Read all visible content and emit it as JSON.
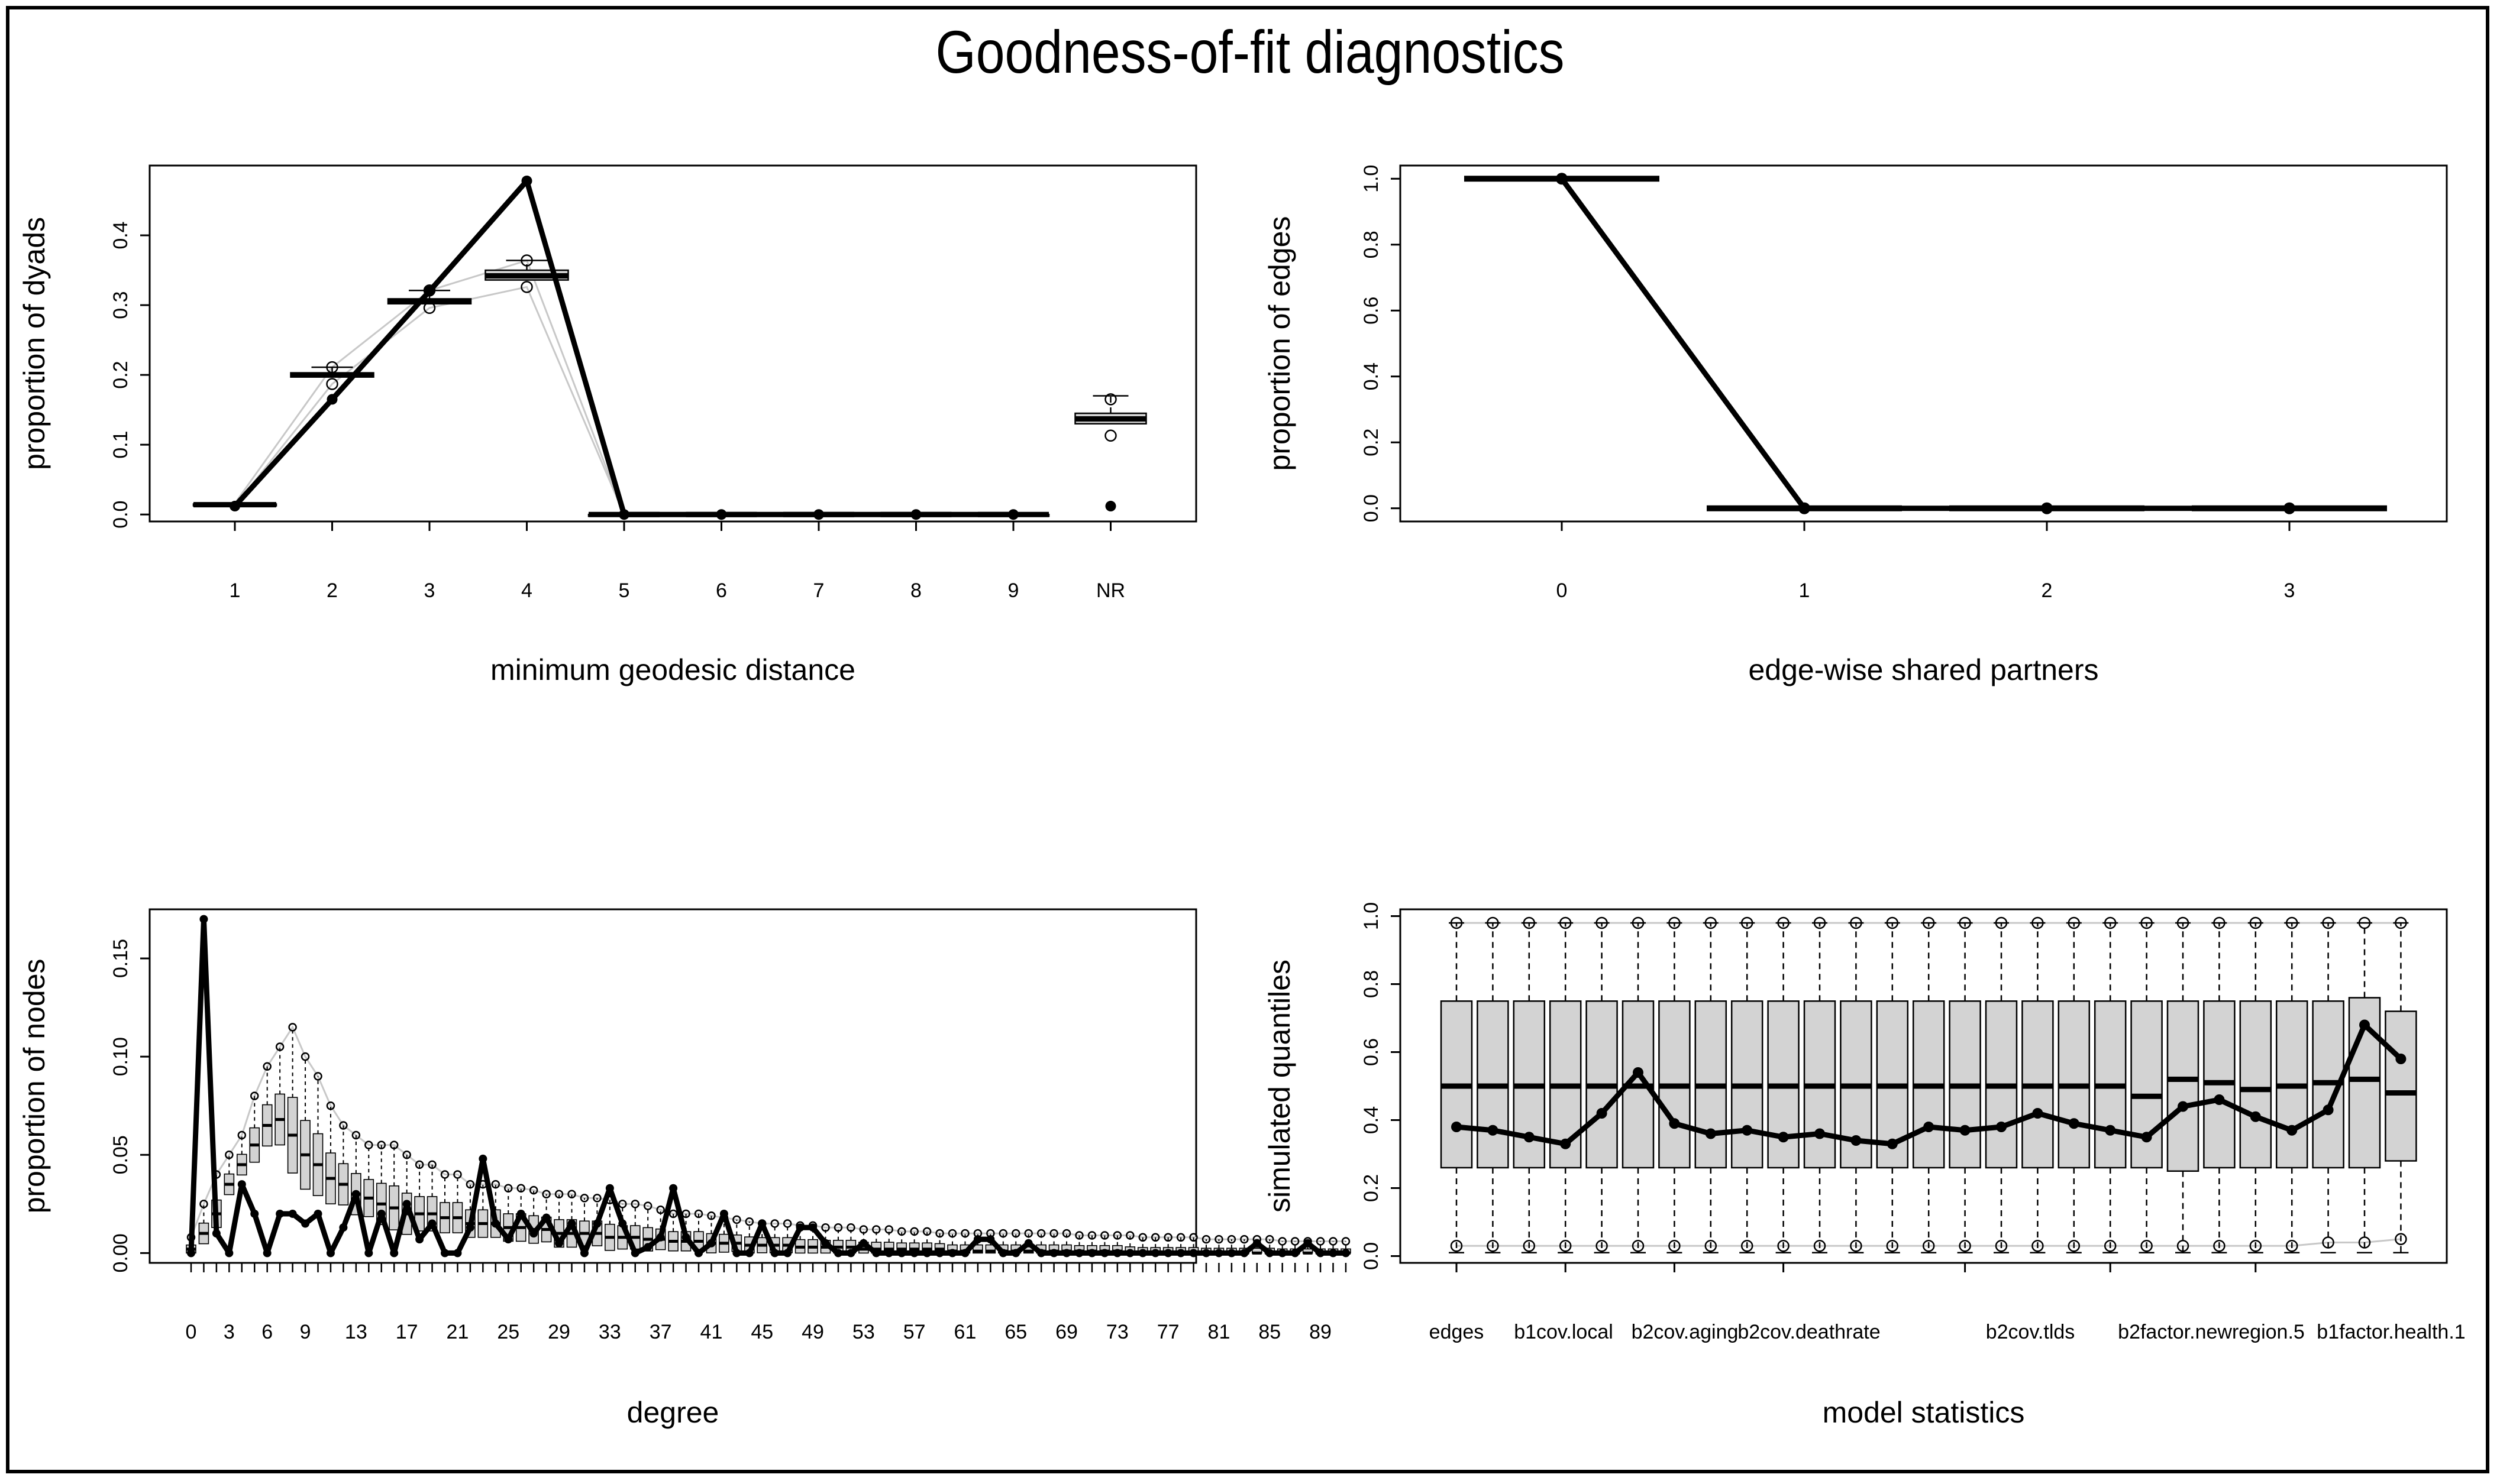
{
  "title": "Goodness-of-fit diagnostics",
  "colors": {
    "observed": "#000000",
    "sim_band": "#c8c8c8",
    "box_fill": "#d3d3d3"
  },
  "chart_data": [
    {
      "id": "geodesic",
      "type": "boxplot-line",
      "xlabel": "minimum geodesic distance",
      "ylabel": "proportion of dyads",
      "categories": [
        "1",
        "2",
        "3",
        "4",
        "5",
        "6",
        "7",
        "8",
        "9",
        "NR"
      ],
      "yticks": [
        0.0,
        0.1,
        0.2,
        0.3,
        0.4
      ],
      "yticklabels": [
        "0.0",
        "0.1",
        "0.2",
        "0.3",
        "0.4"
      ],
      "ylim": [
        -0.01,
        0.5
      ],
      "observed": [
        0.012,
        0.165,
        0.32,
        0.478,
        0.0,
        0.0,
        0.0,
        0.0,
        0.0,
        0.012
      ],
      "sim_median": [
        0.014,
        0.2,
        0.305,
        0.342,
        0.0,
        0.0,
        0.0,
        0.0,
        0.0,
        0.137
      ],
      "sim_q1": [
        0.013,
        0.197,
        0.302,
        0.336,
        0.0,
        0.0,
        0.0,
        0.0,
        0.0,
        0.13
      ],
      "sim_q3": [
        0.015,
        0.203,
        0.309,
        0.35,
        0.0,
        0.0,
        0.0,
        0.0,
        0.0,
        0.145
      ],
      "sim_min": [
        0.012,
        0.187,
        0.296,
        0.326,
        0.0,
        0.0,
        0.0,
        0.0,
        0.0,
        0.105
      ],
      "sim_max": [
        0.016,
        0.211,
        0.321,
        0.364,
        0.0,
        0.0,
        0.0,
        0.0,
        0.0,
        0.17
      ]
    },
    {
      "id": "esp",
      "type": "boxplot-line",
      "xlabel": "edge-wise shared partners",
      "ylabel": "proportion of edges",
      "categories": [
        "0",
        "1",
        "2",
        "3"
      ],
      "yticks": [
        0.0,
        0.2,
        0.4,
        0.6,
        0.8,
        1.0
      ],
      "yticklabels": [
        "0.0",
        "0.2",
        "0.4",
        "0.6",
        "0.8",
        "1.0"
      ],
      "ylim": [
        -0.04,
        1.04
      ],
      "observed": [
        1.0,
        0.0,
        0.0,
        0.0
      ],
      "sim_median": [
        1.0,
        0.0,
        0.0,
        0.0
      ]
    },
    {
      "id": "degree",
      "type": "boxplot-line",
      "xlabel": "degree",
      "ylabel": "proportion of nodes",
      "x_range": [
        0,
        91
      ],
      "xticklabels": [
        "0",
        "3",
        "6",
        "9",
        "13",
        "17",
        "21",
        "25",
        "29",
        "33",
        "37",
        "41",
        "45",
        "49",
        "53",
        "57",
        "61",
        "65",
        "69",
        "73",
        "77",
        "81",
        "85",
        "89"
      ],
      "yticks": [
        0.0,
        0.05,
        0.1,
        0.15
      ],
      "yticklabels": [
        "0.00",
        "0.05",
        "0.10",
        "0.15"
      ],
      "ylim": [
        -0.005,
        0.175
      ],
      "observed": [
        0.0,
        0.17,
        0.01,
        0.0,
        0.035,
        0.02,
        0.0,
        0.02,
        0.02,
        0.015,
        0.02,
        0.0,
        0.013,
        0.03,
        0.0,
        0.02,
        0.0,
        0.025,
        0.007,
        0.015,
        0.0,
        0.0,
        0.013,
        0.048,
        0.015,
        0.007,
        0.02,
        0.01,
        0.018,
        0.005,
        0.015,
        0.0,
        0.015,
        0.033,
        0.015,
        0.0,
        0.003,
        0.008,
        0.033,
        0.008,
        0.0,
        0.005,
        0.02,
        0.0,
        0.0,
        0.015,
        0.0,
        0.0,
        0.013,
        0.013,
        0.005,
        0.0,
        0.0,
        0.005,
        0.0,
        0.0,
        0.0,
        0.0,
        0.0,
        0.0,
        0.0,
        0.0,
        0.007,
        0.007,
        0.0,
        0.0,
        0.005,
        0.0,
        0.0,
        0.0,
        0.0,
        0.0,
        0.0,
        0.0,
        0.0,
        0.0,
        0.0,
        0.0,
        0.0,
        0.0,
        0.0,
        0.0,
        0.0,
        0.0,
        0.005,
        0.0,
        0.0,
        0.0,
        0.005,
        0.0,
        0.0,
        0.0
      ],
      "sim_median": [
        0.002,
        0.01,
        0.02,
        0.035,
        0.045,
        0.055,
        0.065,
        0.068,
        0.06,
        0.05,
        0.045,
        0.038,
        0.035,
        0.03,
        0.028,
        0.025,
        0.023,
        0.02,
        0.02,
        0.02,
        0.018,
        0.018,
        0.015,
        0.015,
        0.015,
        0.013,
        0.013,
        0.012,
        0.012,
        0.01,
        0.01,
        0.01,
        0.01,
        0.008,
        0.008,
        0.008,
        0.007,
        0.007,
        0.006,
        0.006,
        0.006,
        0.005,
        0.005,
        0.005,
        0.004,
        0.004,
        0.004,
        0.004,
        0.003,
        0.003,
        0.003,
        0.003,
        0.003,
        0.002,
        0.002,
        0.002,
        0.002,
        0.002,
        0.002,
        0.002,
        0.001,
        0.001,
        0.001,
        0.001,
        0.001,
        0.001,
        0.001,
        0.001,
        0.001,
        0.001,
        0.001,
        0.001,
        0.001,
        0.001,
        0.0,
        0.0,
        0.0,
        0.0,
        0.0,
        0.0,
        0.0,
        0.0,
        0.0,
        0.0,
        0.0,
        0.0,
        0.0,
        0.0,
        0.0,
        0.0,
        0.0,
        0.0
      ],
      "sim_max": [
        0.008,
        0.025,
        0.04,
        0.05,
        0.06,
        0.08,
        0.095,
        0.105,
        0.115,
        0.1,
        0.09,
        0.075,
        0.065,
        0.06,
        0.055,
        0.055,
        0.055,
        0.05,
        0.045,
        0.045,
        0.04,
        0.04,
        0.035,
        0.035,
        0.035,
        0.033,
        0.033,
        0.032,
        0.03,
        0.03,
        0.03,
        0.028,
        0.028,
        0.027,
        0.025,
        0.025,
        0.024,
        0.022,
        0.02,
        0.02,
        0.02,
        0.019,
        0.018,
        0.017,
        0.016,
        0.015,
        0.015,
        0.015,
        0.014,
        0.014,
        0.013,
        0.013,
        0.013,
        0.012,
        0.012,
        0.012,
        0.011,
        0.011,
        0.011,
        0.01,
        0.01,
        0.01,
        0.01,
        0.01,
        0.01,
        0.01,
        0.01,
        0.01,
        0.01,
        0.01,
        0.009,
        0.009,
        0.009,
        0.009,
        0.009,
        0.008,
        0.008,
        0.008,
        0.008,
        0.008,
        0.007,
        0.007,
        0.007,
        0.007,
        0.007,
        0.007,
        0.006,
        0.006,
        0.006,
        0.006,
        0.006,
        0.006
      ]
    },
    {
      "id": "model",
      "type": "boxplot-line",
      "xlabel": "model statistics",
      "ylabel": "simulated quantiles",
      "xticklabels": [
        "edges",
        "b1cov.local",
        "b2cov.aging",
        "b2cov.deathrate",
        "b2cov.tlds",
        "b2factor.newregion.5",
        "b1factor.health.1"
      ],
      "xtick_positions": [
        0,
        3,
        6,
        9,
        14,
        18,
        22
      ],
      "n_stats": 27,
      "yticks": [
        0.0,
        0.2,
        0.4,
        0.6,
        0.8,
        1.0
      ],
      "yticklabels": [
        "0.0",
        "0.2",
        "0.4",
        "0.6",
        "0.8",
        "1.0"
      ],
      "ylim": [
        -0.02,
        1.02
      ],
      "observed": [
        0.38,
        0.37,
        0.35,
        0.33,
        0.42,
        0.54,
        0.39,
        0.36,
        0.37,
        0.35,
        0.36,
        0.34,
        0.33,
        0.38,
        0.37,
        0.38,
        0.42,
        0.39,
        0.37,
        0.35,
        0.44,
        0.46,
        0.41,
        0.37,
        0.43,
        0.68,
        0.58
      ],
      "box_q1": [
        0.26,
        0.26,
        0.26,
        0.26,
        0.26,
        0.26,
        0.26,
        0.26,
        0.26,
        0.26,
        0.26,
        0.26,
        0.26,
        0.26,
        0.26,
        0.26,
        0.26,
        0.26,
        0.26,
        0.26,
        0.25,
        0.26,
        0.26,
        0.26,
        0.26,
        0.26,
        0.28
      ],
      "box_median": [
        0.5,
        0.5,
        0.5,
        0.5,
        0.5,
        0.5,
        0.5,
        0.5,
        0.5,
        0.5,
        0.5,
        0.5,
        0.5,
        0.5,
        0.5,
        0.5,
        0.5,
        0.5,
        0.5,
        0.47,
        0.52,
        0.51,
        0.49,
        0.5,
        0.51,
        0.52,
        0.48
      ],
      "box_q3": [
        0.75,
        0.75,
        0.75,
        0.75,
        0.75,
        0.75,
        0.75,
        0.75,
        0.75,
        0.75,
        0.75,
        0.75,
        0.75,
        0.75,
        0.75,
        0.75,
        0.75,
        0.75,
        0.75,
        0.75,
        0.75,
        0.75,
        0.75,
        0.75,
        0.75,
        0.76,
        0.72
      ],
      "whisker_low": [
        0.01,
        0.01,
        0.01,
        0.01,
        0.01,
        0.01,
        0.01,
        0.01,
        0.01,
        0.01,
        0.01,
        0.01,
        0.01,
        0.01,
        0.01,
        0.01,
        0.01,
        0.01,
        0.01,
        0.01,
        0.01,
        0.01,
        0.01,
        0.01,
        0.01,
        0.01,
        0.01
      ],
      "whisker_high": [
        0.98,
        0.98,
        0.98,
        0.98,
        0.98,
        0.98,
        0.98,
        0.98,
        0.98,
        0.98,
        0.98,
        0.98,
        0.98,
        0.98,
        0.98,
        0.98,
        0.98,
        0.98,
        0.98,
        0.98,
        0.98,
        0.98,
        0.98,
        0.98,
        0.98,
        0.98,
        0.98
      ],
      "band_low": [
        0.03,
        0.03,
        0.03,
        0.03,
        0.03,
        0.03,
        0.03,
        0.03,
        0.03,
        0.03,
        0.03,
        0.03,
        0.03,
        0.03,
        0.03,
        0.03,
        0.03,
        0.03,
        0.03,
        0.03,
        0.03,
        0.03,
        0.03,
        0.03,
        0.04,
        0.04,
        0.05
      ],
      "band_high": [
        0.98,
        0.98,
        0.98,
        0.98,
        0.98,
        0.98,
        0.98,
        0.98,
        0.98,
        0.98,
        0.98,
        0.98,
        0.98,
        0.98,
        0.98,
        0.98,
        0.98,
        0.98,
        0.98,
        0.98,
        0.98,
        0.98,
        0.98,
        0.98,
        0.98,
        0.98,
        0.98
      ]
    }
  ]
}
